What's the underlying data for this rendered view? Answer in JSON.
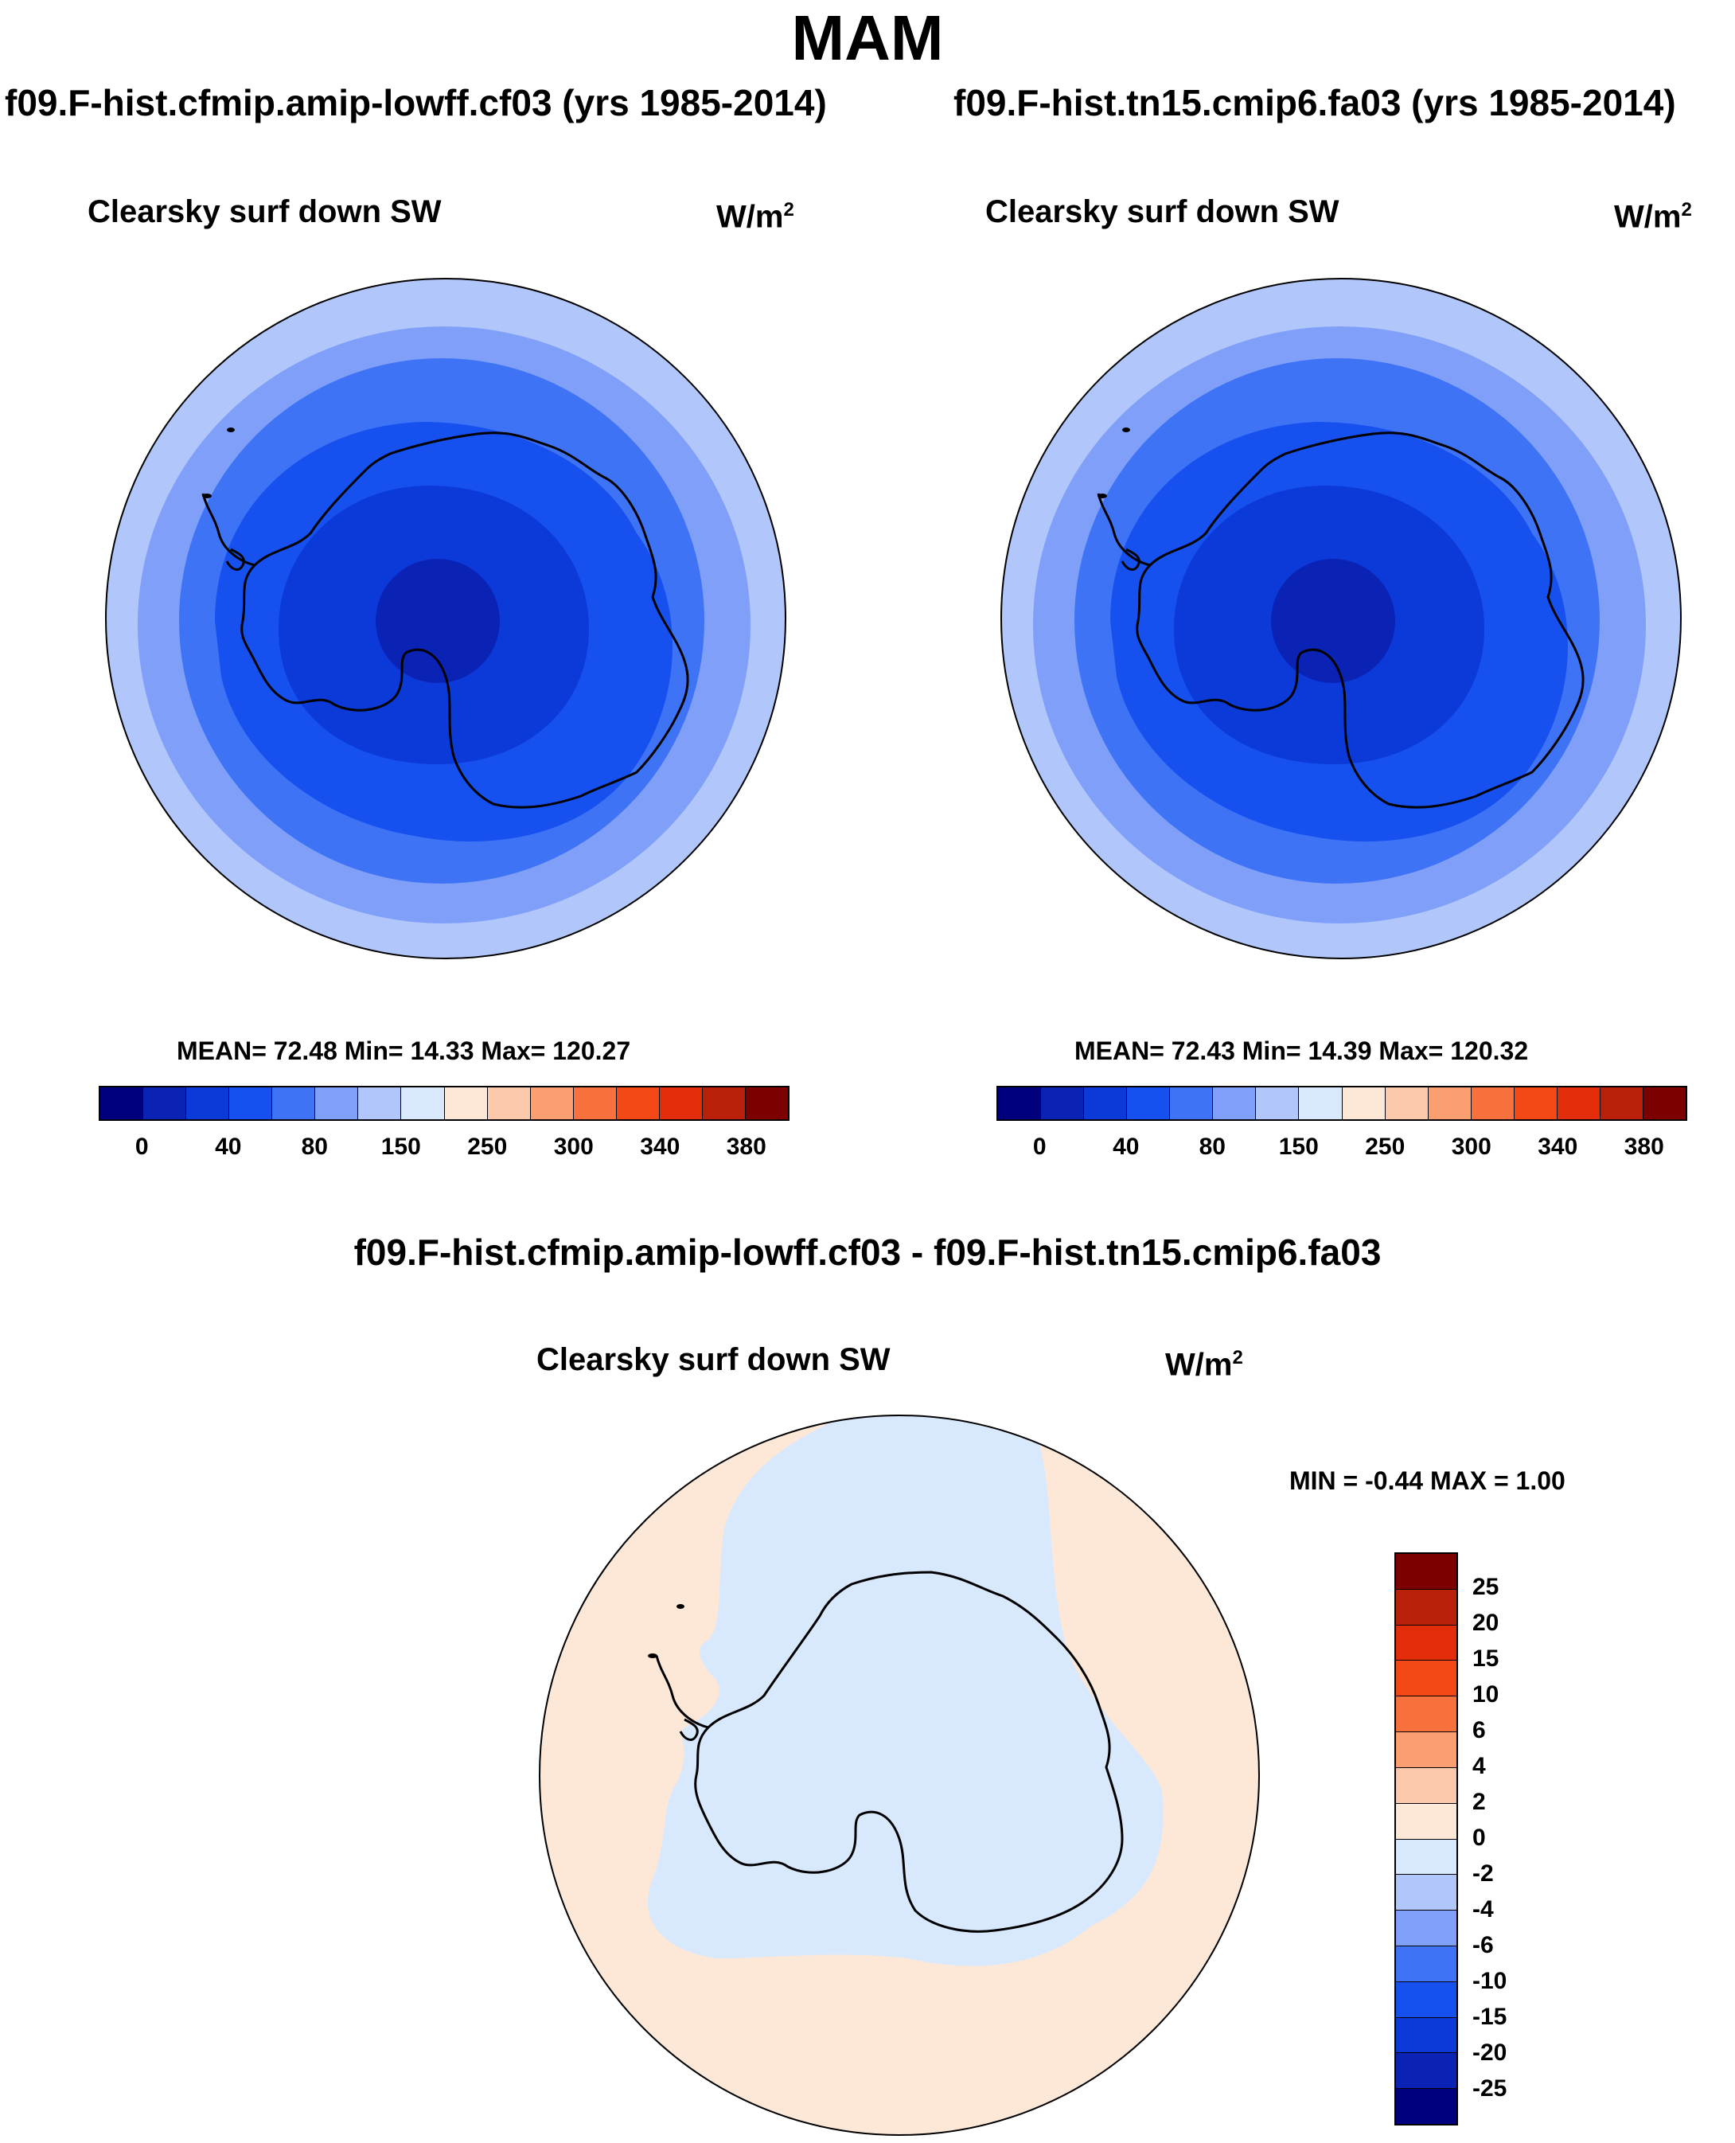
{
  "figure": {
    "season_title": "MAM",
    "variable": "Clearsky surf down SW",
    "units": "W/m",
    "units_exponent": "2"
  },
  "panels": [
    {
      "case_title": "f09.F-hist.cfmip.amip-lowff.cf03 (yrs 1985-2014)",
      "stats": "MEAN=  72.48  Min=  14.33  Max= 120.27"
    },
    {
      "case_title": "f09.F-hist.tn15.cmip6.fa03 (yrs 1985-2014)",
      "stats": "MEAN=  72.43  Min=  14.39  Max= 120.32"
    }
  ],
  "diff_panel": {
    "title": "f09.F-hist.cfmip.amip-lowff.cf03 - f09.F-hist.tn15.cmip6.fa03",
    "minmax": "MIN =  -0.44 MAX =   1.00"
  },
  "colors": {
    "abs_scale": [
      "#00007f",
      "#0a23b4",
      "#0b3ad9",
      "#1651f0",
      "#3f73f5",
      "#7f9ff8",
      "#b1c7fb",
      "#d8e8fd",
      "#fde8d8",
      "#fcc9ad",
      "#fb9f70",
      "#f8703b",
      "#f44916",
      "#e32c0a",
      "#b8200a",
      "#7d0000"
    ],
    "diff_scale": [
      "#7d0000",
      "#b8200a",
      "#e32c0a",
      "#f44916",
      "#f8703b",
      "#fb9f70",
      "#fcc9ad",
      "#fde8d8",
      "#d8e8fd",
      "#b1c7fb",
      "#7f9ff8",
      "#3f73f5",
      "#1651f0",
      "#0b3ad9",
      "#0a23b4",
      "#00007f"
    ],
    "diff_positive": "#fde8d8",
    "diff_negative": "#d8e8fd"
  },
  "chart_data": [
    {
      "type": "heatmap",
      "projection": "south polar stereographic",
      "title": "Clearsky surf down SW",
      "units": "W/m^2",
      "levels": [
        0,
        20,
        40,
        60,
        80,
        100,
        150,
        200,
        250,
        275,
        300,
        320,
        340,
        360,
        380
      ],
      "tick_labels": [
        "0",
        "40",
        "80",
        "150",
        "250",
        "300",
        "340",
        "380"
      ],
      "mean": 72.48,
      "min": 14.33,
      "max": 120.27
    },
    {
      "type": "heatmap",
      "projection": "south polar stereographic",
      "title": "Clearsky surf down SW",
      "units": "W/m^2",
      "levels": [
        0,
        20,
        40,
        60,
        80,
        100,
        150,
        200,
        250,
        275,
        300,
        320,
        340,
        360,
        380
      ],
      "tick_labels": [
        "0",
        "40",
        "80",
        "150",
        "250",
        "300",
        "340",
        "380"
      ],
      "mean": 72.43,
      "min": 14.39,
      "max": 120.32
    },
    {
      "type": "heatmap",
      "projection": "south polar stereographic",
      "title": "Clearsky surf down SW",
      "units": "W/m^2",
      "levels": [
        25,
        20,
        15,
        10,
        6,
        4,
        2,
        0,
        -2,
        -4,
        -6,
        -10,
        -15,
        -20,
        -25
      ],
      "tick_labels": [
        "25",
        "20",
        "15",
        "10",
        "6",
        "4",
        "2",
        "0",
        "-2",
        "-4",
        "-6",
        "-10",
        "-15",
        "-20",
        "-25"
      ],
      "min": -0.44,
      "max": 1.0
    }
  ]
}
